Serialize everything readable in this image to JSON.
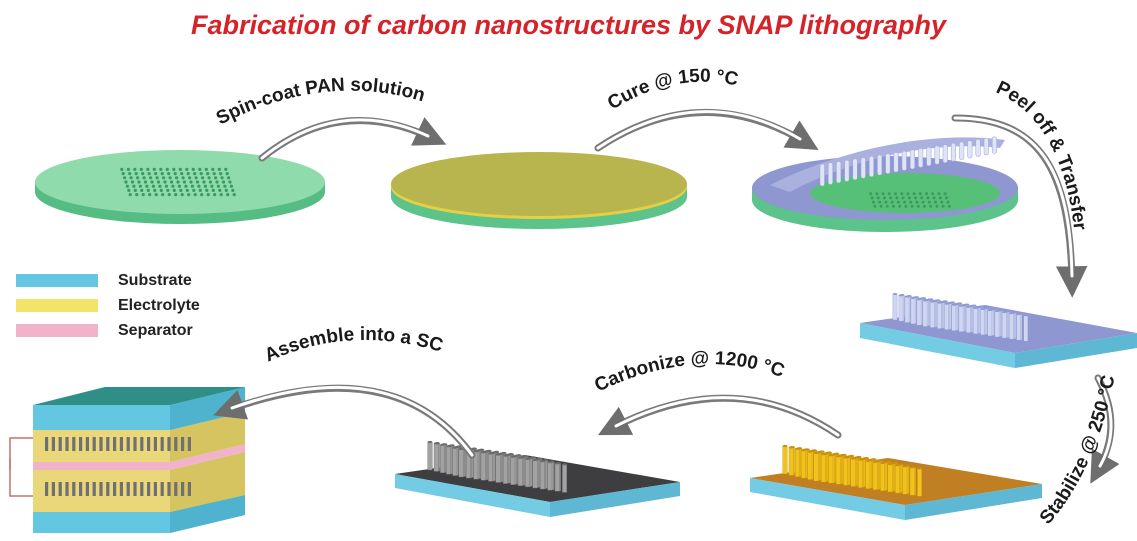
{
  "title": "Fabrication of carbon nanostructures by SNAP lithography",
  "steps": {
    "spin_coat": "Spin-coat PAN solution",
    "cure": "Cure @ 150 °C",
    "peel": "Peel off & Transfer",
    "stabilize": "Stabilize @ 250 °C",
    "carbonize": "Carbonize @ 1200 °C",
    "assemble": "Assemble into a SC"
  },
  "legend": [
    {
      "label": "Substrate",
      "color": "#63c7e1"
    },
    {
      "label": "Electrolyte",
      "color": "#f3e36a"
    },
    {
      "label": "Separator",
      "color": "#f0b3c9"
    }
  ],
  "colors": {
    "title": "#d6232a",
    "wafer": "#8fd9a8",
    "wafer_edge": "#4fb97c",
    "pan": "#b9b64e",
    "mold": "#8f97cf",
    "pillar_light": "#cfd6f1",
    "pillar_yellow": "#f0c21c",
    "pillar_gray": "#8e8e8e",
    "arrow": "#707070"
  }
}
